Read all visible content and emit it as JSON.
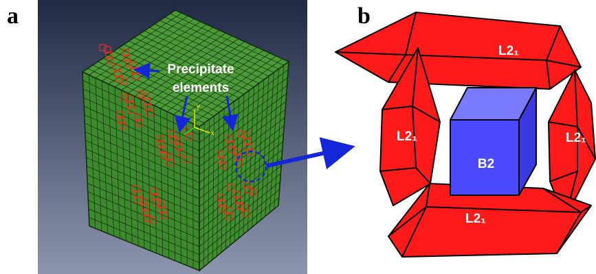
{
  "panel_a": {
    "label": "a",
    "annotation": [
      "Precipitate",
      "elements"
    ],
    "axis_labels": [
      "y",
      "x"
    ]
  },
  "panel_b": {
    "label": "b",
    "phases": [
      "L2₁",
      "L2₁",
      "L2₁",
      "L2₁",
      "B2"
    ]
  }
}
